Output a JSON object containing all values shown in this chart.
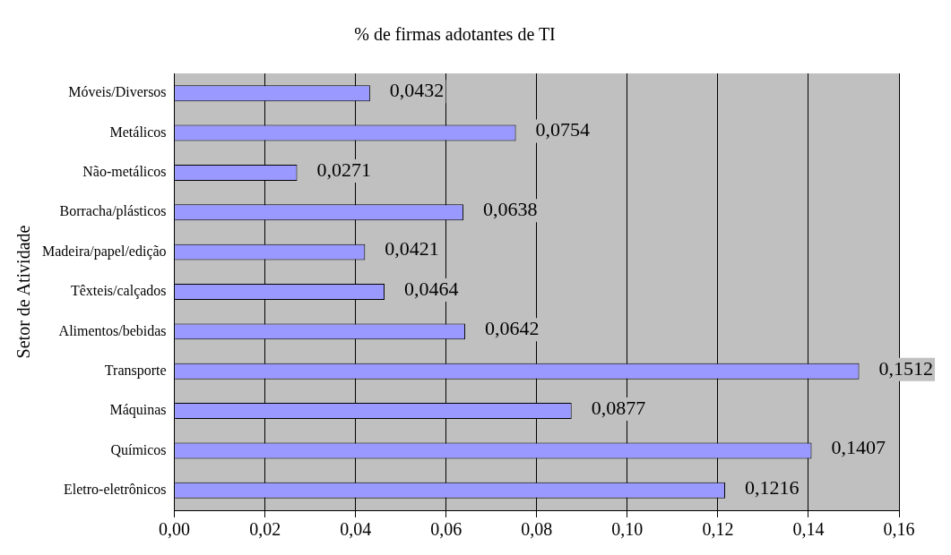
{
  "chart_data": {
    "type": "bar",
    "orientation": "horizontal",
    "title": "% de firmas adotantes de TI",
    "ylabel": "Setor de Atividade",
    "categories": [
      "Móveis/Diversos",
      "Metálicos",
      "Não-metálicos",
      "Borracha/plásticos",
      "Madeira/papel/edição",
      "Têxteis/calçados",
      "Alimentos/bebidas",
      "Transporte",
      "Máquinas",
      "Químicos",
      "Eletro-eletrônicos"
    ],
    "values": [
      0.0432,
      0.0754,
      0.0271,
      0.0638,
      0.0421,
      0.0464,
      0.0642,
      0.1512,
      0.0877,
      0.1407,
      0.1216
    ],
    "value_labels": [
      "0,0432",
      "0,0754",
      "0,0271",
      "0,0638",
      "0,0421",
      "0,0464",
      "0,0642",
      "0,1512",
      "0,0877",
      "0,1407",
      "0,1216"
    ],
    "color": "#9999ff",
    "xlim": [
      0,
      0.16
    ],
    "xticks": [
      {
        "value": 0,
        "label": "0,00"
      },
      {
        "value": 0.02,
        "label": "0,02"
      },
      {
        "value": 0.04,
        "label": "0,04"
      },
      {
        "value": 0.06,
        "label": "0,06"
      },
      {
        "value": 0.08,
        "label": "0,08"
      },
      {
        "value": 0.1,
        "label": "0,10"
      },
      {
        "value": 0.12,
        "label": "0,12"
      },
      {
        "value": 0.14,
        "label": "0,14"
      },
      {
        "value": 0.16,
        "label": "0,16"
      }
    ],
    "grid": "x",
    "legend": false
  }
}
